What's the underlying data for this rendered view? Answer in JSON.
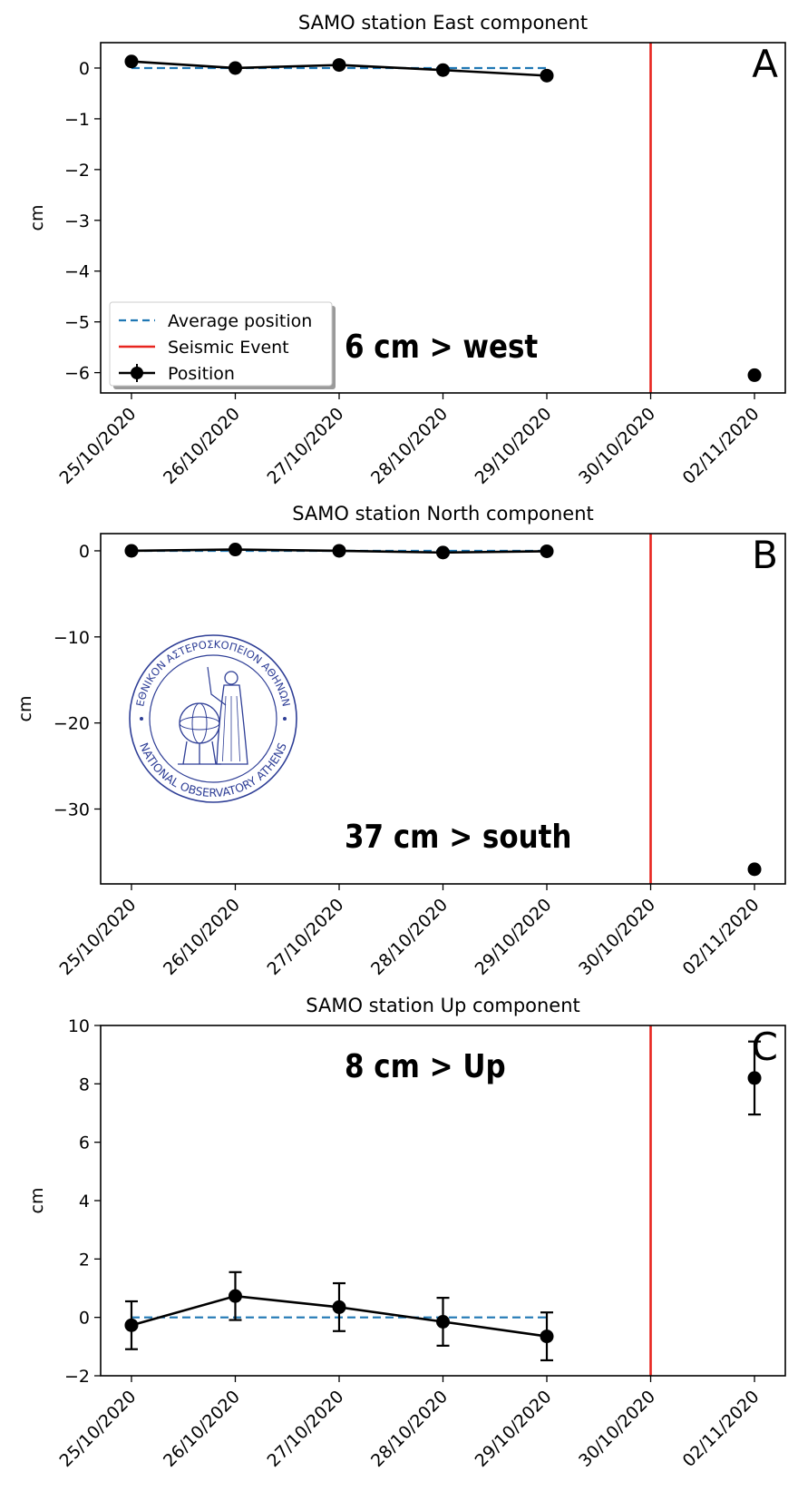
{
  "colors": {
    "average": "#1f77b4",
    "event": "#e8251f",
    "position": "#000000",
    "seal": "#2e3e96"
  },
  "chart_data": [
    {
      "type": "line",
      "title": "SAMO station East component",
      "ylabel": "cm",
      "panel_label": "A",
      "annotation": "6 cm > west",
      "categories": [
        "25/10/2020",
        "26/10/2020",
        "27/10/2020",
        "28/10/2020",
        "29/10/2020",
        "30/10/2020",
        "02/11/2020"
      ],
      "ylim": [
        -6.4,
        0.5
      ],
      "yticks": [
        0,
        -1,
        -2,
        -3,
        -4,
        -5,
        -6
      ],
      "ytick_labels": [
        "0",
        "−1",
        "−2",
        "−3",
        "−4",
        "−5",
        "−6"
      ],
      "event_category": "30/10/2020",
      "average": {
        "value": 0,
        "from": "25/10/2020",
        "to": "29/10/2020"
      },
      "position": [
        {
          "x": "25/10/2020",
          "y": 0.13,
          "err": 0.03
        },
        {
          "x": "26/10/2020",
          "y": 0.0,
          "err": 0.03
        },
        {
          "x": "27/10/2020",
          "y": 0.06,
          "err": 0.03
        },
        {
          "x": "28/10/2020",
          "y": -0.04,
          "err": 0.03
        },
        {
          "x": "29/10/2020",
          "y": -0.15,
          "err": 0.03
        }
      ],
      "post_event": [
        {
          "x": "02/11/2020",
          "y": -6.05,
          "err": 0.03
        }
      ],
      "legend": {
        "placement": "lower-left",
        "entries": [
          {
            "label": "Average position",
            "kind": "average"
          },
          {
            "label": "Seismic Event",
            "kind": "event"
          },
          {
            "label": " Position",
            "kind": "position"
          }
        ]
      }
    },
    {
      "type": "line",
      "title": "SAMO station North component",
      "ylabel": "cm",
      "panel_label": "B",
      "annotation": "37 cm > south",
      "categories": [
        "25/10/2020",
        "26/10/2020",
        "27/10/2020",
        "28/10/2020",
        "29/10/2020",
        "30/10/2020",
        "02/11/2020"
      ],
      "ylim": [
        -38.7,
        2.0
      ],
      "yticks": [
        0,
        -10,
        -20,
        -30
      ],
      "ytick_labels": [
        "0",
        "−10",
        "−20",
        "−30"
      ],
      "event_category": "30/10/2020",
      "average": {
        "value": 0,
        "from": "25/10/2020",
        "to": "29/10/2020"
      },
      "position": [
        {
          "x": "25/10/2020",
          "y": 0.0,
          "err": 0.1
        },
        {
          "x": "26/10/2020",
          "y": 0.15,
          "err": 0.1
        },
        {
          "x": "27/10/2020",
          "y": 0.0,
          "err": 0.1
        },
        {
          "x": "28/10/2020",
          "y": -0.2,
          "err": 0.1
        },
        {
          "x": "29/10/2020",
          "y": -0.05,
          "err": 0.1
        }
      ],
      "post_event": [
        {
          "x": "02/11/2020",
          "y": -37.0,
          "err": 0.1
        }
      ],
      "seal": {
        "outer_text": "ΕΘΝΙΚΟΝ ΑΣΤΕΡΟΣΚΟΠΕΙΟΝ ΑΘΗΝΩΝ",
        "inner_text": "NATIONAL OBSERVATORY ATHENS"
      }
    },
    {
      "type": "line",
      "title": "SAMO station Up component",
      "ylabel": "cm",
      "panel_label": "C",
      "annotation": "8 cm > Up",
      "categories": [
        "25/10/2020",
        "26/10/2020",
        "27/10/2020",
        "28/10/2020",
        "29/10/2020",
        "30/10/2020",
        "02/11/2020"
      ],
      "ylim": [
        -2,
        10
      ],
      "yticks": [
        10,
        8,
        6,
        4,
        2,
        0,
        -2
      ],
      "ytick_labels": [
        "10",
        "8",
        "6",
        "4",
        "2",
        "0",
        "−2"
      ],
      "event_category": "30/10/2020",
      "average": {
        "value": 0,
        "from": "25/10/2020",
        "to": "29/10/2020"
      },
      "position": [
        {
          "x": "25/10/2020",
          "y": -0.27,
          "err": 0.82
        },
        {
          "x": "26/10/2020",
          "y": 0.73,
          "err": 0.82
        },
        {
          "x": "27/10/2020",
          "y": 0.35,
          "err": 0.82
        },
        {
          "x": "28/10/2020",
          "y": -0.15,
          "err": 0.82
        },
        {
          "x": "29/10/2020",
          "y": -0.65,
          "err": 0.82
        }
      ],
      "post_event": [
        {
          "x": "02/11/2020",
          "y": 8.2,
          "err": 1.25
        }
      ]
    }
  ]
}
